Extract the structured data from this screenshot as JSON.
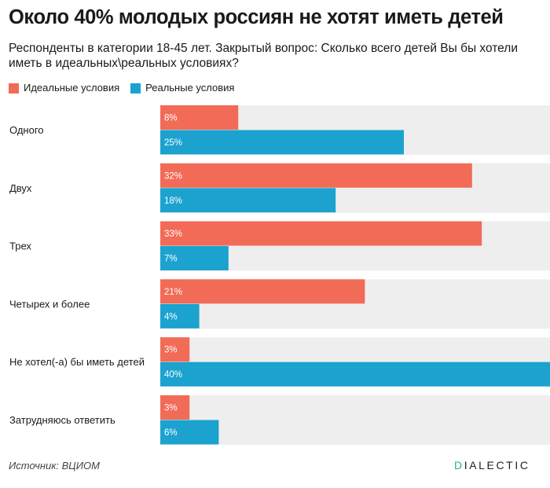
{
  "title": "Около 40% молодых россиян не хотят иметь детей",
  "subtitle": "Респонденты в категории 18-45 лет. Закрытый вопрос: Сколько всего детей Вы бы хотели иметь в идеальных\\реальных условиях?",
  "legend": [
    {
      "label": "Идеальные условия",
      "color": "#f26b57"
    },
    {
      "label": "Реальные условия",
      "color": "#1ba2cf"
    }
  ],
  "source": "Источник: ВЦИОМ",
  "logo": {
    "first": "D",
    "rest": "IALECTIC"
  },
  "chart_data": {
    "type": "bar",
    "orientation": "horizontal",
    "title": "Около 40% молодых россиян не хотят иметь детей",
    "categories": [
      "Одного",
      "Двух",
      "Трех",
      "Четырех и более",
      "Не хотел(-а) бы иметь детей",
      "Затрудняюсь ответить"
    ],
    "series": [
      {
        "name": "Идеальные условия",
        "color": "#f26b57",
        "values": [
          8,
          32,
          33,
          21,
          3,
          3
        ]
      },
      {
        "name": "Реальные условия",
        "color": "#1ba2cf",
        "values": [
          25,
          18,
          7,
          4,
          40,
          6
        ]
      }
    ],
    "value_suffix": "%",
    "xlim": [
      0,
      40
    ],
    "background_color": "#eeeeee"
  }
}
